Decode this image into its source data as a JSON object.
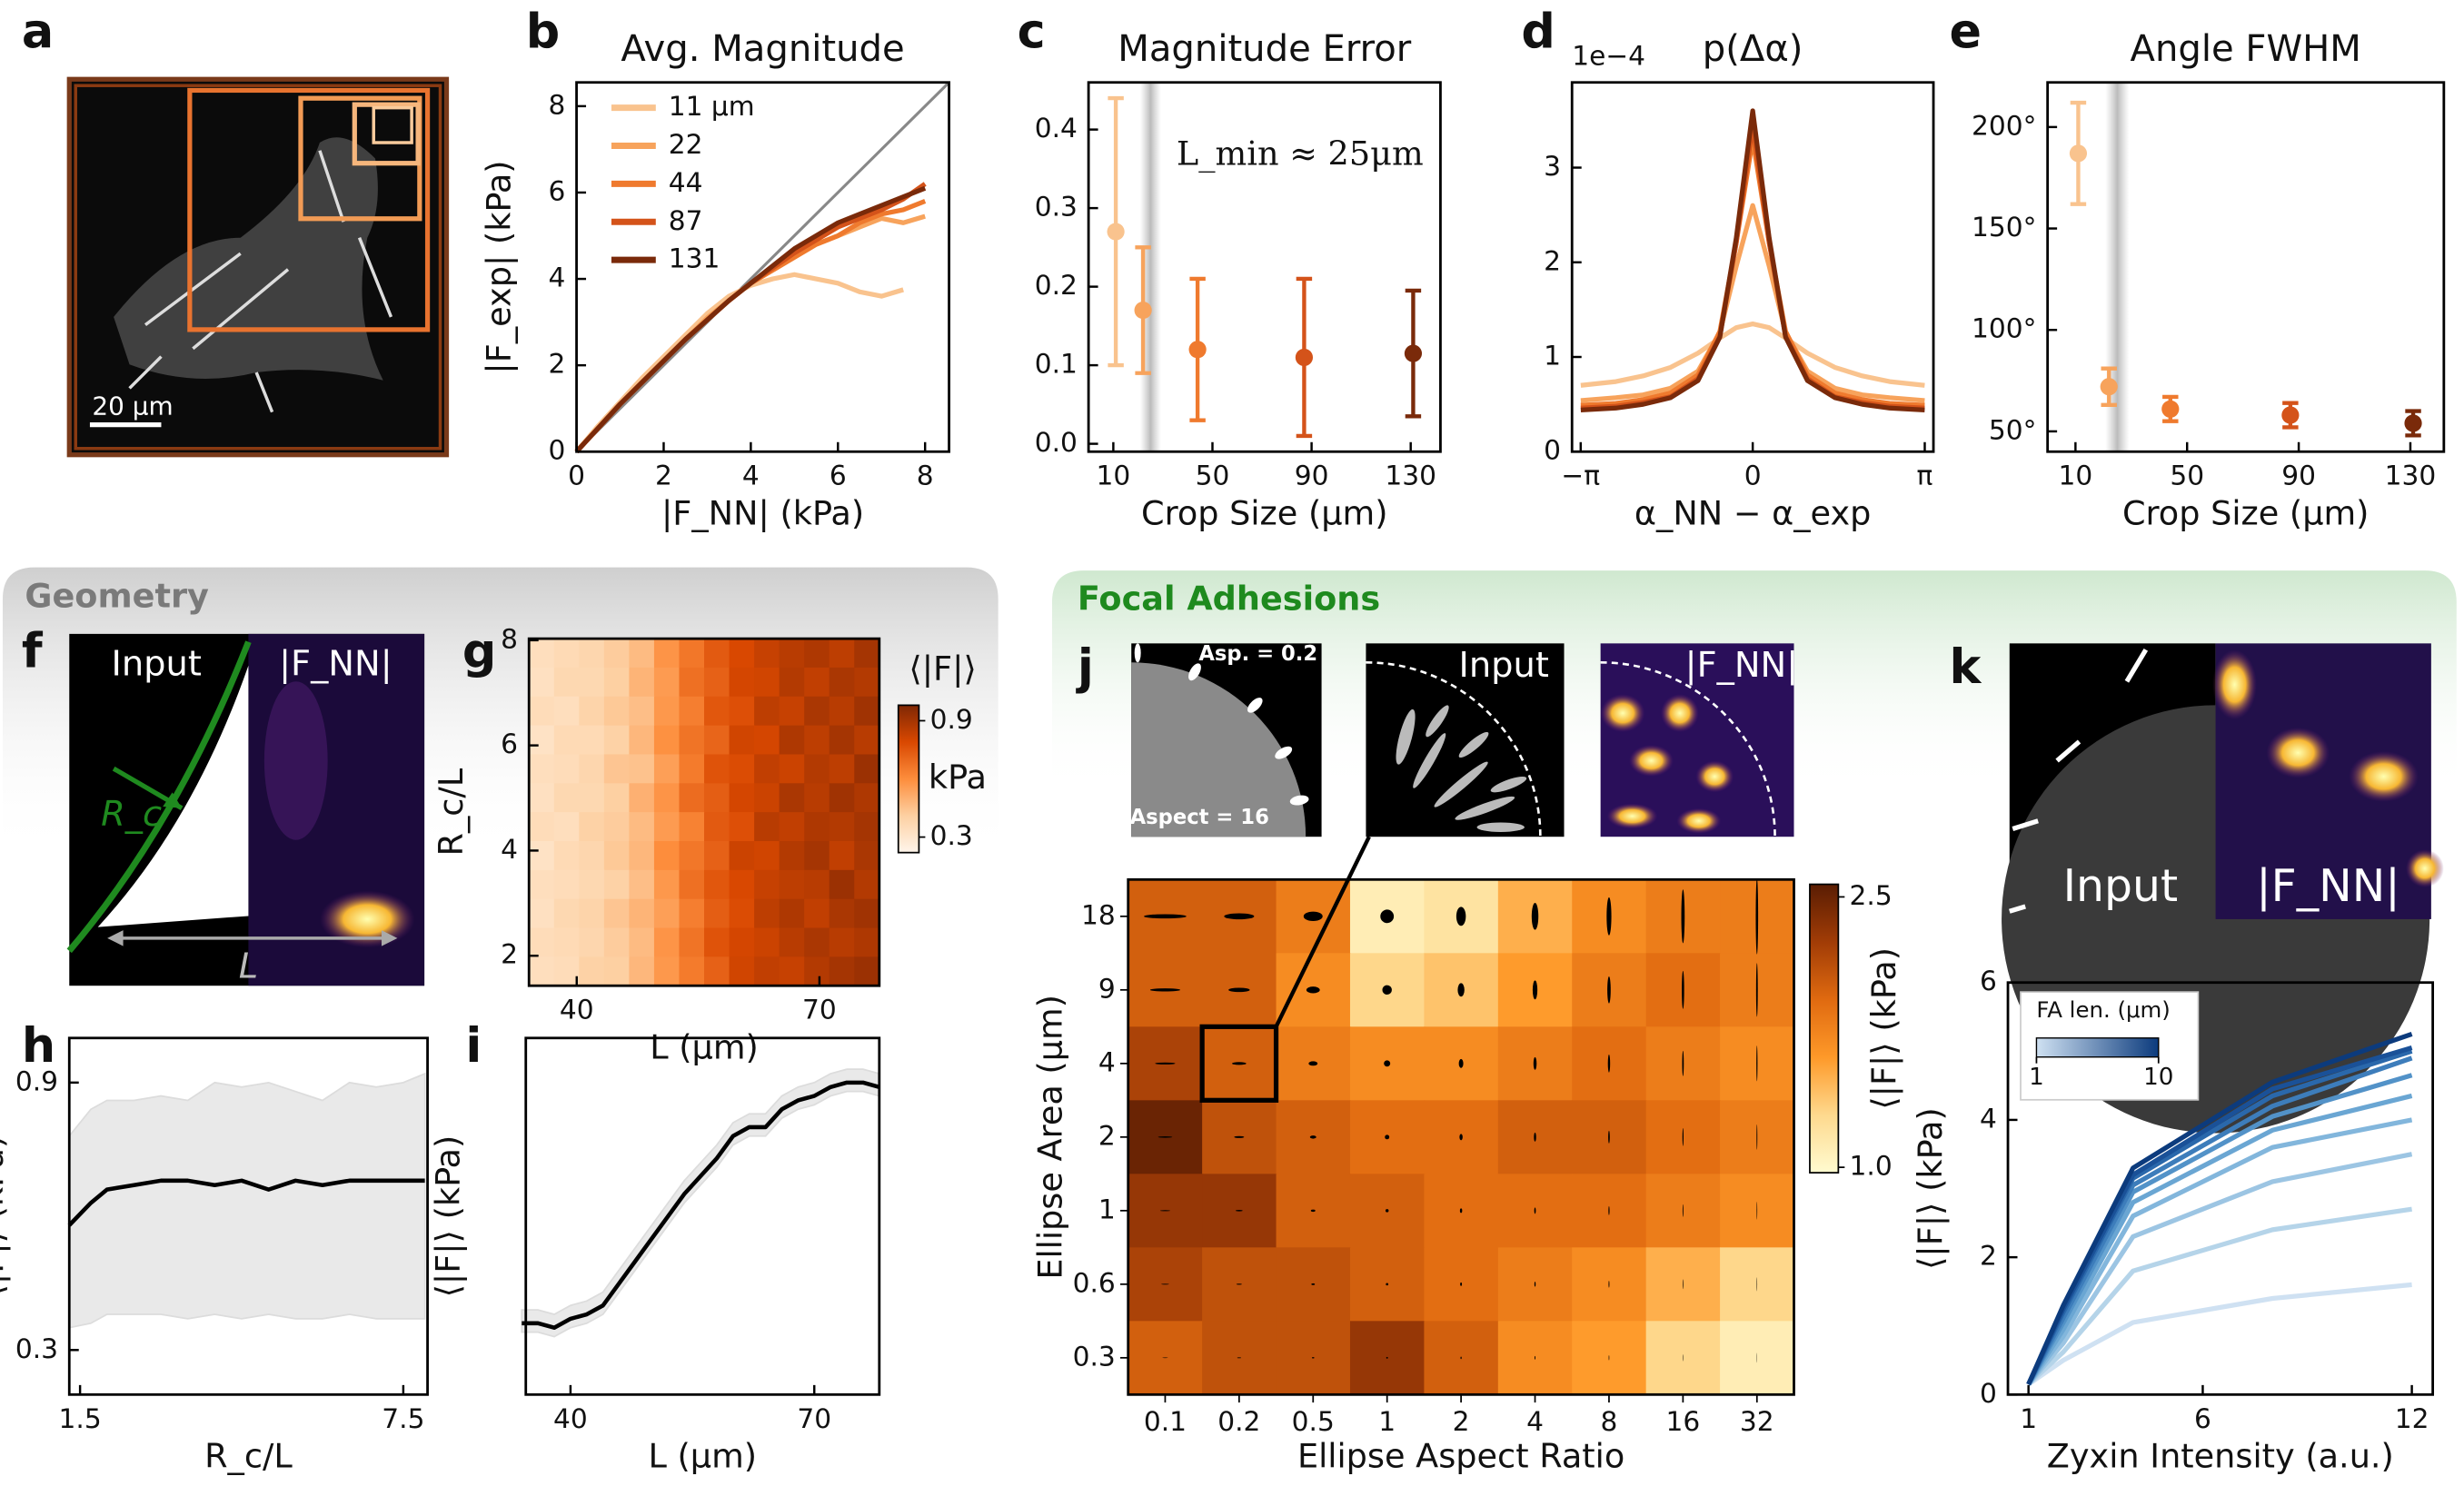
{
  "sections": [
    "Geometry",
    "Focal Adhesions"
  ],
  "panels": [
    {
      "letter": "a",
      "scale_bar": "20 μm"
    },
    {
      "letter": "f",
      "labels": [
        "Input",
        "|F_NN|",
        "R_c",
        "L"
      ]
    },
    {
      "letter": "j",
      "labels": [
        "Asp. = 0.2",
        "Aspect = 16",
        "Input",
        "|F_NN|"
      ]
    },
    {
      "letter": "k",
      "labels": [
        "Input",
        "|F_NN|"
      ]
    }
  ],
  "chart_data": [
    {
      "panel": "b",
      "type": "line",
      "title": "Avg. Magnitude",
      "x_label": "|F_NN| (kPa)",
      "y_label": "|F_exp| (kPa)",
      "x": [
        0,
        0.5,
        1,
        1.5,
        2,
        2.5,
        3,
        3.5,
        4,
        4.5,
        5,
        5.5,
        6,
        6.5,
        7,
        7.5,
        8
      ],
      "series": [
        {
          "name": "11 μm",
          "color": "#f9c38e",
          "values": [
            0,
            0.6,
            1.15,
            1.7,
            2.2,
            2.7,
            3.2,
            3.6,
            3.85,
            4.0,
            4.1,
            4.0,
            3.9,
            3.7,
            3.6,
            3.75,
            null
          ]
        },
        {
          "name": "22",
          "color": "#f7a35c",
          "values": [
            0,
            0.55,
            1.1,
            1.6,
            2.1,
            2.6,
            3.1,
            3.5,
            3.9,
            4.2,
            4.5,
            4.8,
            5.0,
            5.2,
            5.4,
            5.3,
            5.45
          ]
        },
        {
          "name": "44",
          "color": "#ef7a2e",
          "values": [
            0,
            0.55,
            1.1,
            1.6,
            2.1,
            2.6,
            3.05,
            3.5,
            3.9,
            4.2,
            4.5,
            4.8,
            5.0,
            5.3,
            5.5,
            5.6,
            5.8
          ]
        },
        {
          "name": "87",
          "color": "#d4531a",
          "values": [
            0,
            0.55,
            1.1,
            1.6,
            2.1,
            2.6,
            3.05,
            3.5,
            3.9,
            4.25,
            4.6,
            4.9,
            5.2,
            5.4,
            5.6,
            5.85,
            6.2
          ]
        },
        {
          "name": "131",
          "color": "#7a2a0a",
          "values": [
            0,
            0.55,
            1.1,
            1.6,
            2.1,
            2.6,
            3.05,
            3.5,
            3.9,
            4.3,
            4.7,
            5.0,
            5.3,
            5.5,
            5.7,
            5.9,
            6.1
          ]
        }
      ],
      "xlim": [
        0,
        8.55
      ],
      "ylim": [
        0,
        8.55
      ],
      "xticks": [
        0,
        2,
        4,
        6,
        8
      ],
      "yticks": [
        0,
        2,
        4,
        6,
        8
      ],
      "identity_line": true,
      "legend": "upper left"
    },
    {
      "panel": "c",
      "type": "errorbar",
      "title": "Magnitude Error",
      "x_label": "Crop Size (μm)",
      "annotation": "L_min ≈ 25μm",
      "x": [
        11,
        22,
        44,
        87,
        131
      ],
      "values": [
        0.27,
        0.17,
        0.12,
        0.11,
        0.115
      ],
      "errors": [
        0.17,
        0.08,
        0.09,
        0.1,
        0.08
      ],
      "colors": [
        "#f9c38e",
        "#f7a35c",
        "#ef7a2e",
        "#d4531a",
        "#7a2a0a"
      ],
      "highlight_x": 25,
      "xlim": [
        0,
        142
      ],
      "ylim": [
        -0.01,
        0.46
      ],
      "xticks": [
        10,
        50,
        90,
        130
      ],
      "yticks": [
        {
          "value": 0,
          "label": "0.0"
        },
        0.1,
        0.2,
        0.3,
        0.4
      ]
    },
    {
      "panel": "d",
      "type": "line",
      "title": "p(Δα)",
      "offset_label": "1e−4",
      "x_label": "α_NN − α_exp",
      "x": [
        -3.14,
        -2.5,
        -2,
        -1.5,
        -1,
        -0.6,
        -0.3,
        0,
        0.3,
        0.6,
        1,
        1.5,
        2,
        2.5,
        3.14
      ],
      "series": [
        {
          "color": "#f9c38e",
          "values": [
            0.7,
            0.74,
            0.8,
            0.89,
            1.04,
            1.2,
            1.31,
            1.35,
            1.31,
            1.2,
            1.04,
            0.89,
            0.8,
            0.74,
            0.7
          ]
        },
        {
          "color": "#f7a35c",
          "values": [
            0.54,
            0.57,
            0.6,
            0.67,
            0.85,
            1.26,
            1.96,
            2.6,
            1.96,
            1.26,
            0.85,
            0.67,
            0.6,
            0.57,
            0.54
          ]
        },
        {
          "color": "#ef7a2e",
          "values": [
            0.49,
            0.51,
            0.55,
            0.62,
            0.81,
            1.27,
            2.21,
            3.3,
            2.21,
            1.27,
            0.81,
            0.62,
            0.55,
            0.51,
            0.49
          ]
        },
        {
          "color": "#d4531a",
          "values": [
            0.46,
            0.48,
            0.52,
            0.58,
            0.77,
            1.22,
            2.21,
            3.45,
            2.21,
            1.22,
            0.77,
            0.58,
            0.52,
            0.48,
            0.46
          ]
        },
        {
          "color": "#7a2a0a",
          "values": [
            0.44,
            0.46,
            0.5,
            0.57,
            0.75,
            1.21,
            2.26,
            3.6,
            2.26,
            1.21,
            0.75,
            0.57,
            0.5,
            0.46,
            0.44
          ]
        }
      ],
      "xlim": [
        -3.3,
        3.3
      ],
      "ylim": [
        0,
        3.9
      ],
      "xticks": [
        {
          "value": -3.14159,
          "label": "−π"
        },
        0,
        {
          "value": 3.14159,
          "label": "π"
        }
      ],
      "yticks": [
        0,
        1,
        2,
        3
      ]
    },
    {
      "panel": "e",
      "type": "errorbar",
      "title": "Angle FWHM",
      "x_label": "Crop Size (μm)",
      "x": [
        11,
        22,
        44,
        87,
        131
      ],
      "values": [
        187,
        72,
        61,
        58,
        54
      ],
      "errors": [
        25,
        9,
        6,
        6,
        6
      ],
      "colors": [
        "#f9c38e",
        "#f7a35c",
        "#ef7a2e",
        "#d4531a",
        "#7a2a0a"
      ],
      "highlight_x": 25,
      "xlim": [
        0,
        142
      ],
      "ylim": [
        40,
        222
      ],
      "xticks": [
        10,
        50,
        90,
        130
      ],
      "yticks": [
        {
          "value": 50,
          "label": "50°"
        },
        {
          "value": 100,
          "label": "100°"
        },
        {
          "value": 150,
          "label": "150°"
        },
        {
          "value": 200,
          "label": "200°"
        }
      ]
    },
    {
      "panel": "g",
      "type": "heatmap",
      "x_label": "L (μm)",
      "y_label": "R_c/L",
      "colorbar_title": "⟨|F|⟩",
      "colorbar_unit": "kPa",
      "clim": [
        0.22,
        0.98
      ],
      "cticks": [
        0.3,
        0.9
      ],
      "colormap": [
        "#fff5eb",
        "#fdd0a2",
        "#fd8d3c",
        "#d94801",
        "#7f2704"
      ],
      "xlim": [
        34.1,
        77.4
      ],
      "ylim": [
        1.43,
        8.03
      ],
      "xticks": [
        40,
        70
      ],
      "yticks": [
        2,
        4,
        6,
        8
      ],
      "values": [
        [
          0.34,
          0.36,
          0.38,
          0.42,
          0.47,
          0.58,
          0.66,
          0.74,
          0.79,
          0.83,
          0.86,
          0.88,
          0.85,
          0.9
        ],
        [
          0.33,
          0.37,
          0.37,
          0.41,
          0.49,
          0.56,
          0.68,
          0.72,
          0.8,
          0.81,
          0.87,
          0.84,
          0.89,
          0.87
        ],
        [
          0.35,
          0.34,
          0.39,
          0.43,
          0.46,
          0.57,
          0.64,
          0.75,
          0.77,
          0.85,
          0.83,
          0.89,
          0.86,
          0.91
        ],
        [
          0.32,
          0.36,
          0.36,
          0.4,
          0.48,
          0.59,
          0.67,
          0.71,
          0.81,
          0.8,
          0.88,
          0.85,
          0.9,
          0.86
        ],
        [
          0.34,
          0.35,
          0.38,
          0.44,
          0.45,
          0.55,
          0.65,
          0.76,
          0.78,
          0.84,
          0.82,
          0.87,
          0.85,
          0.92
        ],
        [
          0.33,
          0.37,
          0.37,
          0.41,
          0.5,
          0.58,
          0.69,
          0.73,
          0.8,
          0.82,
          0.89,
          0.86,
          0.91,
          0.88
        ],
        [
          0.35,
          0.34,
          0.4,
          0.42,
          0.47,
          0.56,
          0.63,
          0.74,
          0.77,
          0.86,
          0.84,
          0.88,
          0.87,
          0.9
        ],
        [
          0.32,
          0.36,
          0.38,
          0.43,
          0.48,
          0.6,
          0.66,
          0.72,
          0.82,
          0.81,
          0.87,
          0.9,
          0.84,
          0.89
        ],
        [
          0.34,
          0.35,
          0.37,
          0.4,
          0.46,
          0.57,
          0.68,
          0.75,
          0.79,
          0.83,
          0.85,
          0.86,
          0.92,
          0.87
        ],
        [
          0.33,
          0.37,
          0.39,
          0.44,
          0.49,
          0.55,
          0.64,
          0.73,
          0.78,
          0.85,
          0.88,
          0.84,
          0.89,
          0.91
        ],
        [
          0.35,
          0.36,
          0.38,
          0.42,
          0.47,
          0.58,
          0.67,
          0.76,
          0.8,
          0.82,
          0.86,
          0.89,
          0.86,
          0.88
        ],
        [
          0.34,
          0.35,
          0.4,
          0.41,
          0.48,
          0.57,
          0.65,
          0.72,
          0.81,
          0.84,
          0.83,
          0.87,
          0.9,
          0.92
        ]
      ]
    },
    {
      "panel": "h",
      "type": "line",
      "x_label": "R_c/L",
      "y_label": "⟨|F|⟩ (kPa)",
      "color": "#000000",
      "x": [
        1.3,
        1.7,
        2,
        2.5,
        3,
        3.5,
        4,
        4.5,
        5,
        5.5,
        6,
        6.5,
        7,
        7.5,
        7.9
      ],
      "values": [
        0.58,
        0.63,
        0.66,
        0.67,
        0.68,
        0.68,
        0.67,
        0.68,
        0.66,
        0.68,
        0.67,
        0.68,
        0.68,
        0.68,
        0.68
      ],
      "lower": [
        0.35,
        0.36,
        0.38,
        0.38,
        0.38,
        0.37,
        0.38,
        0.37,
        0.38,
        0.37,
        0.37,
        0.38,
        0.37,
        0.37,
        0.37
      ],
      "upper": [
        0.78,
        0.84,
        0.86,
        0.86,
        0.87,
        0.86,
        0.9,
        0.89,
        0.9,
        0.88,
        0.86,
        0.9,
        0.89,
        0.9,
        0.92
      ],
      "xlim": [
        1.3,
        7.95
      ],
      "ylim": [
        0.2,
        1.0
      ],
      "xticks": [
        1.5,
        7.5
      ],
      "yticks": [
        0.3,
        0.9
      ]
    },
    {
      "panel": "i",
      "type": "line",
      "x_label": "L (μm)",
      "y_label": "⟨|F|⟩ (kPa)",
      "color": "#000000",
      "x": [
        34,
        36,
        38,
        40,
        42,
        44,
        46,
        48,
        50,
        52,
        54,
        56,
        58,
        60,
        62,
        64,
        66,
        68,
        70,
        72,
        74,
        76,
        78
      ],
      "values": [
        0.36,
        0.36,
        0.35,
        0.37,
        0.38,
        0.4,
        0.45,
        0.5,
        0.55,
        0.6,
        0.65,
        0.69,
        0.73,
        0.78,
        0.8,
        0.8,
        0.84,
        0.86,
        0.87,
        0.89,
        0.9,
        0.9,
        0.89
      ],
      "lower": [
        0.34,
        0.34,
        0.33,
        0.35,
        0.36,
        0.38,
        0.43,
        0.48,
        0.53,
        0.58,
        0.63,
        0.67,
        0.71,
        0.76,
        0.78,
        0.78,
        0.82,
        0.84,
        0.85,
        0.87,
        0.88,
        0.88,
        0.87
      ],
      "upper": [
        0.39,
        0.39,
        0.38,
        0.4,
        0.41,
        0.43,
        0.48,
        0.53,
        0.58,
        0.63,
        0.68,
        0.72,
        0.76,
        0.81,
        0.83,
        0.83,
        0.87,
        0.89,
        0.9,
        0.92,
        0.93,
        0.93,
        0.92
      ],
      "xlim": [
        34.5,
        78
      ],
      "ylim": [
        0.2,
        1.0
      ],
      "xticks": [
        40,
        70
      ]
    },
    {
      "type": "heatmap",
      "x_label": "Ellipse Aspect Ratio",
      "y_label": "Ellipse Area (μm)",
      "colorbar_title": "⟨|F|⟩ (kPa)",
      "categories": [
        "0.1",
        "0.2",
        "0.5",
        "1",
        "2",
        "4",
        "8",
        "16",
        "32"
      ],
      "y_categories": [
        "18",
        "9",
        "4",
        "2",
        "1",
        "0.6",
        "0.3"
      ],
      "clim": [
        0.97,
        2.57
      ],
      "cticks": [
        {
          "value": 1.0,
          "label": "1.0"
        },
        2.5
      ],
      "colormap": [
        "#fffbd0",
        "#fed98e",
        "#fe9929",
        "#e06a10",
        "#a13c06",
        "#5a1d03"
      ],
      "values": [
        [
          2.0,
          2.0,
          1.8,
          1.1,
          1.2,
          1.5,
          1.7,
          1.8,
          1.8
        ],
        [
          2.0,
          2.0,
          1.7,
          1.3,
          1.4,
          1.6,
          1.8,
          1.9,
          1.8
        ],
        [
          2.2,
          2.0,
          1.8,
          1.7,
          1.7,
          1.8,
          1.9,
          1.8,
          1.7
        ],
        [
          2.5,
          2.1,
          2.0,
          1.9,
          1.9,
          2.0,
          2.0,
          1.9,
          1.8
        ],
        [
          2.3,
          2.3,
          2.0,
          2.0,
          1.9,
          1.9,
          1.9,
          1.8,
          1.7
        ],
        [
          2.2,
          2.1,
          2.1,
          2.0,
          1.9,
          1.8,
          1.7,
          1.5,
          1.3
        ],
        [
          2.0,
          2.1,
          2.1,
          2.3,
          2.0,
          1.7,
          1.6,
          1.3,
          1.1
        ]
      ]
    },
    {
      "type": "line",
      "x_label": "Zyxin Intensity (a.u.)",
      "y_label": "⟨|F|⟩ (kPa)",
      "x": [
        1,
        2,
        4,
        8,
        12
      ],
      "series": [
        {
          "color": "#cfe1f2",
          "values": [
            0.15,
            0.5,
            1.05,
            1.4,
            1.6
          ]
        },
        {
          "color": "#b5d4e9",
          "values": [
            0.15,
            0.62,
            1.8,
            2.4,
            2.7
          ]
        },
        {
          "color": "#9cc5e3",
          "values": [
            0.15,
            0.75,
            2.3,
            3.1,
            3.5
          ]
        },
        {
          "color": "#82b6dc",
          "values": [
            0.15,
            0.85,
            2.6,
            3.6,
            4.0
          ]
        },
        {
          "color": "#6aa6d3",
          "values": [
            0.15,
            0.95,
            2.8,
            3.85,
            4.35
          ]
        },
        {
          "color": "#5292c8",
          "values": [
            0.15,
            1.05,
            2.95,
            4.05,
            4.65
          ]
        },
        {
          "color": "#3d7dbb",
          "values": [
            0.15,
            1.12,
            3.05,
            4.2,
            4.9
          ]
        },
        {
          "color": "#2a68ab",
          "values": [
            0.15,
            1.2,
            3.15,
            4.35,
            5.0
          ]
        },
        {
          "color": "#1a5198",
          "values": [
            0.15,
            1.25,
            3.2,
            4.45,
            5.05
          ]
        },
        {
          "color": "#0c3b7d",
          "values": [
            0.15,
            1.3,
            3.3,
            4.55,
            5.25
          ]
        }
      ],
      "legend_colorbar": {
        "title": "FA len. (μm)",
        "ticks": [
          1,
          10
        ],
        "colors": [
          "#cfe1f2",
          "#0c3b7d"
        ]
      },
      "xlim": [
        0.41,
        12.6
      ],
      "ylim": [
        0,
        6
      ],
      "xticks": [
        1,
        6,
        12
      ],
      "yticks": [
        0,
        2,
        4,
        6
      ]
    }
  ]
}
